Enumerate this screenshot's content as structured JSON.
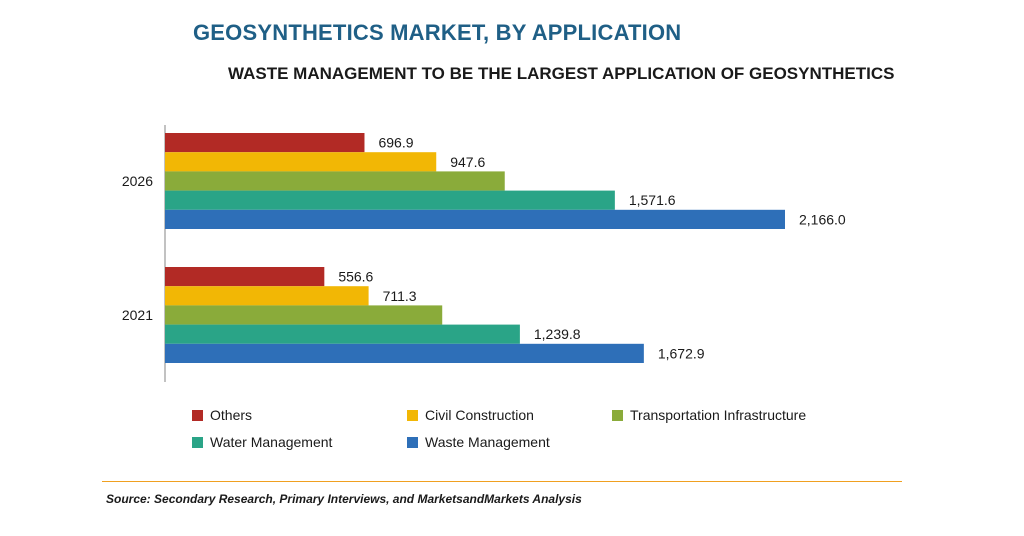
{
  "title": "GEOSYNTHETICS MARKET, BY APPLICATION",
  "subtitle": "WASTE MANAGEMENT TO BE THE LARGEST APPLICATION OF GEOSYNTHETICS",
  "source": "Source: Secondary Research, Primary Interviews, and MarketsandMarkets Analysis",
  "colors": {
    "others": "#b22a25",
    "civil": "#f2b705",
    "transport": "#8aab3a",
    "water": "#2aa487",
    "waste": "#2e6fb8"
  },
  "chart_data": {
    "type": "bar",
    "orientation": "horizontal",
    "categories": [
      "2026",
      "2021"
    ],
    "series": [
      {
        "name": "Others",
        "color": "#b22a25",
        "values": [
          696.9,
          556.6
        ],
        "labels": [
          "696.9",
          "556.6"
        ]
      },
      {
        "name": "Civil Construction",
        "color": "#f2b705",
        "values": [
          947.6,
          711.3
        ],
        "labels": [
          "947.6",
          "711.3"
        ]
      },
      {
        "name": "Transportation Infrastructure",
        "color": "#8aab3a",
        "values": [
          1186.9,
          968.5
        ],
        "labels": [
          "",
          ""
        ]
      },
      {
        "name": "Water Management",
        "color": "#2aa487",
        "values": [
          1571.6,
          1239.8
        ],
        "labels": [
          "1,571.6",
          "1,239.8"
        ]
      },
      {
        "name": "Waste Management",
        "color": "#2e6fb8",
        "values": [
          2166.0,
          1672.9
        ],
        "labels": [
          "2,166.0",
          "1,672.9"
        ]
      }
    ],
    "legend_position": "bottom",
    "grid": false
  }
}
